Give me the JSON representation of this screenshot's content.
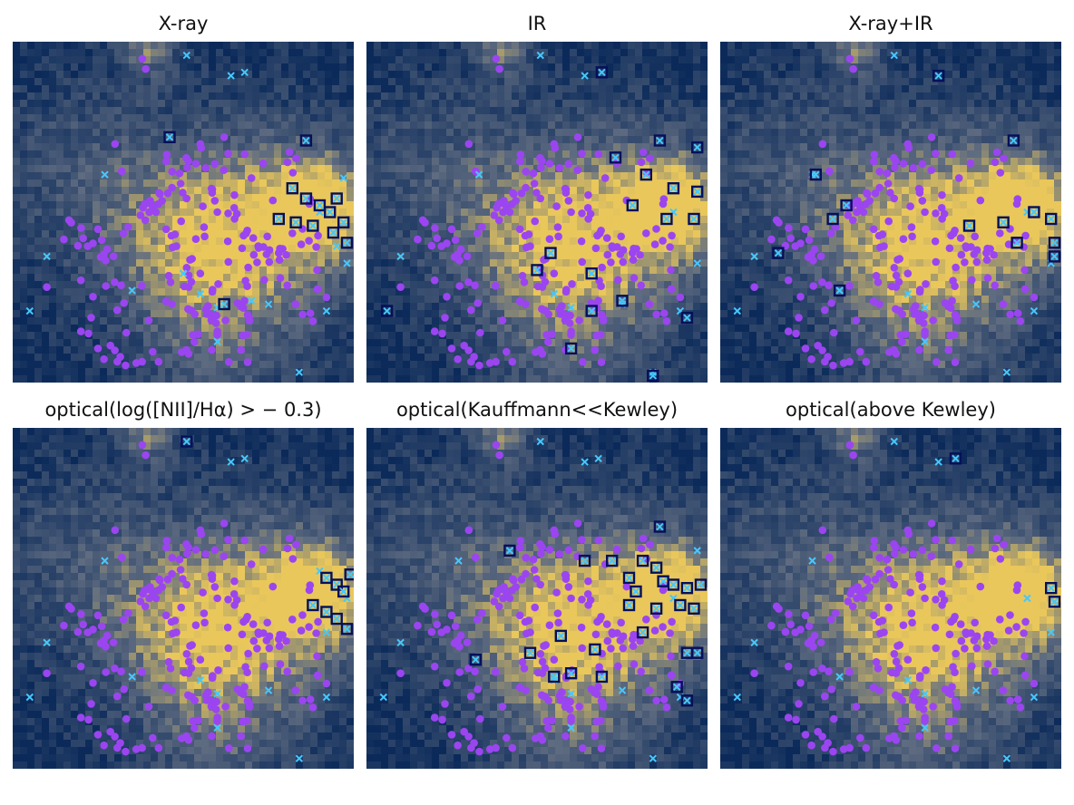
{
  "figure": {
    "panel_titles": [
      "X-ray",
      "IR",
      "X-ray+IR",
      "optical(log([NII]/Hα) > − 0.3)",
      "optical(Kauffmann<<Kewley)",
      "optical(above Kewley)"
    ]
  },
  "colors": {
    "background_low": "#0b2a5a",
    "background_mid": "#5e6b80",
    "background_high": "#e9c75b",
    "galaxy_dot": "#9b45f0",
    "candidate_cross": "#45c8ff",
    "selected_square_edge": "#06105a"
  },
  "chart_data": [
    {
      "type": "scatter",
      "title": "X-ray",
      "series": [
        {
          "name": "",
          "role": "purple dots",
          "points": [
            [
              0.38,
              0.05
            ],
            [
              0.39,
              0.08
            ],
            [
              0.3,
              0.3
            ],
            [
              0.32,
              0.38
            ],
            [
              0.42,
              0.5
            ],
            [
              0.45,
              0.55
            ],
            [
              0.48,
              0.6
            ],
            [
              0.52,
              0.64
            ],
            [
              0.55,
              0.68
            ],
            [
              0.6,
              0.5
            ],
            [
              0.65,
              0.45
            ],
            [
              0.7,
              0.4
            ],
            [
              0.25,
              0.55
            ],
            [
              0.22,
              0.6
            ],
            [
              0.15,
              0.58
            ],
            [
              0.2,
              0.7
            ],
            [
              0.55,
              0.3
            ],
            [
              0.62,
              0.28
            ],
            [
              0.68,
              0.33
            ],
            [
              0.72,
              0.6
            ],
            [
              0.78,
              0.62
            ],
            [
              0.85,
              0.8
            ],
            [
              0.88,
              0.82
            ],
            [
              0.92,
              0.75
            ],
            [
              0.58,
              0.8
            ],
            [
              0.6,
              0.85
            ],
            [
              0.2,
              0.85
            ],
            [
              0.25,
              0.9
            ],
            [
              0.1,
              0.72
            ]
          ]
        },
        {
          "name": "",
          "role": "cyan crosses",
          "points": [
            [
              0.51,
              0.04
            ],
            [
              0.64,
              0.1
            ],
            [
              0.68,
              0.09
            ],
            [
              0.27,
              0.39
            ],
            [
              0.1,
              0.63
            ],
            [
              0.05,
              0.79
            ],
            [
              0.35,
              0.73
            ],
            [
              0.5,
              0.68
            ],
            [
              0.55,
              0.74
            ],
            [
              0.6,
              0.78
            ],
            [
              0.7,
              0.76
            ],
            [
              0.75,
              0.77
            ],
            [
              0.92,
              0.79
            ],
            [
              0.6,
              0.88
            ],
            [
              0.84,
              0.97
            ],
            [
              0.9,
              0.5
            ],
            [
              0.95,
              0.6
            ],
            [
              0.97,
              0.4
            ],
            [
              0.98,
              0.65
            ]
          ]
        },
        {
          "name": "",
          "role": "boxed crosses",
          "points": [
            [
              0.46,
              0.28
            ],
            [
              0.86,
              0.29
            ],
            [
              0.82,
              0.43
            ],
            [
              0.86,
              0.46
            ],
            [
              0.9,
              0.48
            ],
            [
              0.95,
              0.46
            ],
            [
              0.93,
              0.5
            ],
            [
              0.78,
              0.52
            ],
            [
              0.83,
              0.53
            ],
            [
              0.88,
              0.54
            ],
            [
              0.94,
              0.56
            ],
            [
              0.97,
              0.53
            ],
            [
              0.98,
              0.59
            ],
            [
              0.62,
              0.77
            ]
          ]
        }
      ]
    },
    {
      "type": "scatter",
      "title": "IR",
      "series": [
        {
          "name": "",
          "role": "cyan crosses",
          "points": [
            [
              0.51,
              0.04
            ],
            [
              0.64,
              0.1
            ],
            [
              0.33,
              0.39
            ],
            [
              0.1,
              0.63
            ],
            [
              0.55,
              0.74
            ],
            [
              0.6,
              0.78
            ],
            [
              0.75,
              0.77
            ],
            [
              0.92,
              0.79
            ],
            [
              0.84,
              0.97
            ],
            [
              0.9,
              0.5
            ],
            [
              0.97,
              0.65
            ]
          ]
        },
        {
          "name": "",
          "role": "boxed crosses",
          "points": [
            [
              0.69,
              0.09
            ],
            [
              0.86,
              0.29
            ],
            [
              0.97,
              0.31
            ],
            [
              0.73,
              0.34
            ],
            [
              0.82,
              0.39
            ],
            [
              0.9,
              0.43
            ],
            [
              0.97,
              0.44
            ],
            [
              0.78,
              0.48
            ],
            [
              0.88,
              0.52
            ],
            [
              0.96,
              0.52
            ],
            [
              0.54,
              0.62
            ],
            [
              0.5,
              0.67
            ],
            [
              0.66,
              0.68
            ],
            [
              0.75,
              0.76
            ],
            [
              0.66,
              0.79
            ],
            [
              0.94,
              0.81
            ],
            [
              0.06,
              0.79
            ],
            [
              0.6,
              0.9
            ],
            [
              0.84,
              0.98
            ]
          ]
        }
      ]
    },
    {
      "type": "scatter",
      "title": "X-ray+IR",
      "series": [
        {
          "name": "",
          "role": "cyan crosses",
          "points": [
            [
              0.51,
              0.04
            ],
            [
              0.27,
              0.39
            ],
            [
              0.1,
              0.63
            ],
            [
              0.05,
              0.79
            ],
            [
              0.35,
              0.73
            ],
            [
              0.55,
              0.74
            ],
            [
              0.6,
              0.78
            ],
            [
              0.75,
              0.77
            ],
            [
              0.92,
              0.79
            ],
            [
              0.6,
              0.88
            ],
            [
              0.84,
              0.97
            ],
            [
              0.9,
              0.5
            ],
            [
              0.97,
              0.65
            ]
          ]
        },
        {
          "name": "",
          "role": "boxed crosses",
          "points": [
            [
              0.64,
              0.1
            ],
            [
              0.86,
              0.29
            ],
            [
              0.28,
              0.39
            ],
            [
              0.37,
              0.48
            ],
            [
              0.33,
              0.52
            ],
            [
              0.73,
              0.54
            ],
            [
              0.83,
              0.53
            ],
            [
              0.92,
              0.5
            ],
            [
              0.97,
              0.52
            ],
            [
              0.87,
              0.59
            ],
            [
              0.98,
              0.59
            ],
            [
              0.17,
              0.62
            ],
            [
              0.98,
              0.63
            ],
            [
              0.35,
              0.73
            ]
          ]
        }
      ]
    },
    {
      "type": "scatter",
      "title": "optical(log([NII]/Hα) > − 0.3)",
      "series": [
        {
          "name": "",
          "role": "cyan crosses",
          "points": [
            [
              0.64,
              0.1
            ],
            [
              0.68,
              0.09
            ],
            [
              0.27,
              0.39
            ],
            [
              0.1,
              0.63
            ],
            [
              0.05,
              0.79
            ],
            [
              0.35,
              0.73
            ],
            [
              0.55,
              0.74
            ],
            [
              0.6,
              0.78
            ],
            [
              0.75,
              0.77
            ],
            [
              0.92,
              0.79
            ],
            [
              0.6,
              0.88
            ],
            [
              0.84,
              0.97
            ],
            [
              0.92,
              0.6
            ],
            [
              0.98,
              0.5
            ],
            [
              0.9,
              0.42
            ]
          ]
        },
        {
          "name": "",
          "role": "boxed crosses",
          "points": [
            [
              0.51,
              0.04
            ],
            [
              0.92,
              0.44
            ],
            [
              0.95,
              0.46
            ],
            [
              0.97,
              0.48
            ],
            [
              0.99,
              0.43
            ],
            [
              0.88,
              0.52
            ],
            [
              0.92,
              0.54
            ],
            [
              0.95,
              0.56
            ],
            [
              0.98,
              0.59
            ]
          ]
        }
      ]
    },
    {
      "type": "scatter",
      "title": "optical(Kauffmann<<Kewley)",
      "series": [
        {
          "name": "",
          "role": "cyan crosses",
          "points": [
            [
              0.51,
              0.04
            ],
            [
              0.64,
              0.1
            ],
            [
              0.68,
              0.09
            ],
            [
              0.27,
              0.39
            ],
            [
              0.1,
              0.63
            ],
            [
              0.05,
              0.79
            ],
            [
              0.55,
              0.74
            ],
            [
              0.6,
              0.78
            ],
            [
              0.75,
              0.77
            ],
            [
              0.92,
              0.79
            ],
            [
              0.6,
              0.88
            ],
            [
              0.84,
              0.97
            ],
            [
              0.9,
              0.5
            ],
            [
              0.97,
              0.36
            ]
          ]
        },
        {
          "name": "",
          "role": "boxed crosses",
          "points": [
            [
              0.86,
              0.29
            ],
            [
              0.42,
              0.36
            ],
            [
              0.64,
              0.39
            ],
            [
              0.72,
              0.39
            ],
            [
              0.81,
              0.39
            ],
            [
              0.85,
              0.41
            ],
            [
              0.77,
              0.44
            ],
            [
              0.87,
              0.45
            ],
            [
              0.9,
              0.46
            ],
            [
              0.94,
              0.47
            ],
            [
              0.98,
              0.46
            ],
            [
              0.79,
              0.48
            ],
            [
              0.92,
              0.52
            ],
            [
              0.96,
              0.53
            ],
            [
              0.77,
              0.52
            ],
            [
              0.85,
              0.53
            ],
            [
              0.57,
              0.61
            ],
            [
              0.48,
              0.66
            ],
            [
              0.81,
              0.6
            ],
            [
              0.67,
              0.65
            ],
            [
              0.32,
              0.68
            ],
            [
              0.69,
              0.73
            ],
            [
              0.6,
              0.72
            ],
            [
              0.55,
              0.73
            ],
            [
              0.91,
              0.76
            ],
            [
              0.94,
              0.66
            ],
            [
              0.97,
              0.66
            ],
            [
              0.94,
              0.8
            ]
          ]
        }
      ]
    },
    {
      "type": "scatter",
      "title": "optical(above Kewley)",
      "series": [
        {
          "name": "",
          "role": "cyan crosses",
          "points": [
            [
              0.51,
              0.04
            ],
            [
              0.64,
              0.1
            ],
            [
              0.27,
              0.39
            ],
            [
              0.1,
              0.63
            ],
            [
              0.05,
              0.79
            ],
            [
              0.35,
              0.73
            ],
            [
              0.55,
              0.74
            ],
            [
              0.6,
              0.78
            ],
            [
              0.75,
              0.77
            ],
            [
              0.92,
              0.79
            ],
            [
              0.6,
              0.88
            ],
            [
              0.84,
              0.97
            ],
            [
              0.9,
              0.5
            ],
            [
              0.97,
              0.6
            ]
          ]
        },
        {
          "name": "",
          "role": "boxed crosses",
          "points": [
            [
              0.69,
              0.09
            ],
            [
              0.97,
              0.47
            ],
            [
              0.98,
              0.51
            ]
          ]
        }
      ]
    }
  ]
}
